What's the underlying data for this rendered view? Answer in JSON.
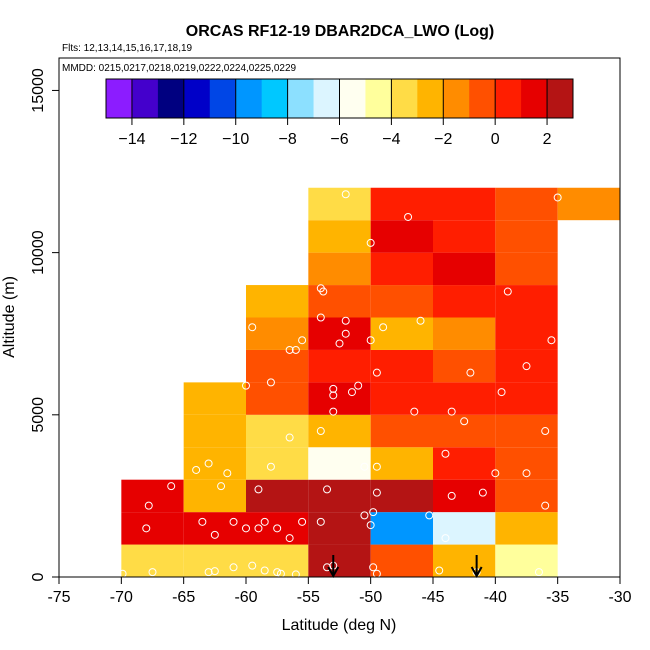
{
  "chart_data": {
    "type": "heatmap",
    "title": "ORCAS RF12-19 DBAR2DCA_LWO (Log)",
    "flights_note": "Flts: 12,13,14,15,16,17,18,19",
    "mmdd_note": "MMDD: 0215,0217,0218,0219,0222,0224,0225,0229",
    "xlabel": "Latitude (deg N)",
    "ylabel": "Altitude (m)",
    "xlim": [
      -75,
      -30
    ],
    "ylim": [
      0,
      16000
    ],
    "xticks": [
      -75,
      -70,
      -65,
      -60,
      -55,
      -50,
      -45,
      -40,
      -35,
      -30
    ],
    "yticks": [
      0,
      5000,
      10000,
      15000
    ],
    "colorbar": {
      "range": [
        -15,
        3
      ],
      "ticks": [
        -14,
        -12,
        -10,
        -8,
        -6,
        -4,
        -2,
        0,
        2
      ],
      "colors": [
        "#8c1cff",
        "#4400cc",
        "#000080",
        "#0000c8",
        "#0046e6",
        "#0096ff",
        "#00c8ff",
        "#8ce0ff",
        "#dcf5ff",
        "#fffff0",
        "#ffff9c",
        "#ffdc46",
        "#ffb400",
        "#ff8c00",
        "#ff5000",
        "#ff1e00",
        "#e60000",
        "#b41414"
      ]
    },
    "cell_width_deg": 5,
    "cell_height_m": 1000,
    "cells": [
      {
        "lat": -70,
        "alt": 0,
        "value": -3.5
      },
      {
        "lat": -65,
        "alt": 0,
        "value": -4.0
      },
      {
        "lat": -60,
        "alt": 0,
        "value": -3.5
      },
      {
        "lat": -55,
        "alt": 0,
        "value": 2.0
      },
      {
        "lat": -50,
        "alt": 0,
        "value": -1.0
      },
      {
        "lat": -45,
        "alt": 0,
        "value": -2.5
      },
      {
        "lat": -40,
        "alt": 0,
        "value": -5.0
      },
      {
        "lat": -70,
        "alt": 1000,
        "value": 1.0
      },
      {
        "lat": -65,
        "alt": 1000,
        "value": 1.0
      },
      {
        "lat": -60,
        "alt": 1000,
        "value": 1.0
      },
      {
        "lat": -55,
        "alt": 1000,
        "value": 2.0
      },
      {
        "lat": -50,
        "alt": 1000,
        "value": -9.5
      },
      {
        "lat": -45,
        "alt": 1000,
        "value": -7.0
      },
      {
        "lat": -40,
        "alt": 1000,
        "value": -3.0
      },
      {
        "lat": -70,
        "alt": 2000,
        "value": 1.0
      },
      {
        "lat": -65,
        "alt": 2000,
        "value": -3.0
      },
      {
        "lat": -60,
        "alt": 2000,
        "value": 2.0
      },
      {
        "lat": -55,
        "alt": 2000,
        "value": 2.8
      },
      {
        "lat": -50,
        "alt": 2000,
        "value": 2.8
      },
      {
        "lat": -45,
        "alt": 2000,
        "value": 1.5
      },
      {
        "lat": -40,
        "alt": 2000,
        "value": -1.0
      },
      {
        "lat": -65,
        "alt": 3000,
        "value": -2.5
      },
      {
        "lat": -60,
        "alt": 3000,
        "value": -3.5
      },
      {
        "lat": -55,
        "alt": 3000,
        "value": -5.5
      },
      {
        "lat": -50,
        "alt": 3000,
        "value": -3.0
      },
      {
        "lat": -45,
        "alt": 3000,
        "value": 0.0
      },
      {
        "lat": -40,
        "alt": 3000,
        "value": -0.5
      },
      {
        "lat": -65,
        "alt": 4000,
        "value": -2.5
      },
      {
        "lat": -60,
        "alt": 4000,
        "value": -3.5
      },
      {
        "lat": -55,
        "alt": 4000,
        "value": -3.0
      },
      {
        "lat": -50,
        "alt": 4000,
        "value": -0.5
      },
      {
        "lat": -45,
        "alt": 4000,
        "value": -0.5
      },
      {
        "lat": -40,
        "alt": 4000,
        "value": -0.5
      },
      {
        "lat": -65,
        "alt": 5000,
        "value": -2.5
      },
      {
        "lat": -60,
        "alt": 5000,
        "value": -1.0
      },
      {
        "lat": -55,
        "alt": 5000,
        "value": 1.0
      },
      {
        "lat": -50,
        "alt": 5000,
        "value": 0.5
      },
      {
        "lat": -45,
        "alt": 5000,
        "value": 0.0
      },
      {
        "lat": -40,
        "alt": 5000,
        "value": 0.0
      },
      {
        "lat": -60,
        "alt": 6000,
        "value": -1.0
      },
      {
        "lat": -55,
        "alt": 6000,
        "value": 0.0
      },
      {
        "lat": -50,
        "alt": 6000,
        "value": 0.5
      },
      {
        "lat": -45,
        "alt": 6000,
        "value": -0.5
      },
      {
        "lat": -40,
        "alt": 6000,
        "value": 0.0
      },
      {
        "lat": -60,
        "alt": 7000,
        "value": -1.5
      },
      {
        "lat": -55,
        "alt": 7000,
        "value": 1.0
      },
      {
        "lat": -50,
        "alt": 7000,
        "value": -2.5
      },
      {
        "lat": -45,
        "alt": 7000,
        "value": -1.5
      },
      {
        "lat": -40,
        "alt": 7000,
        "value": 0.5
      },
      {
        "lat": -60,
        "alt": 8000,
        "value": -2.5
      },
      {
        "lat": -55,
        "alt": 8000,
        "value": -1.0
      },
      {
        "lat": -50,
        "alt": 8000,
        "value": -1.0
      },
      {
        "lat": -45,
        "alt": 8000,
        "value": 0.5
      },
      {
        "lat": -40,
        "alt": 8000,
        "value": 0.0
      },
      {
        "lat": -55,
        "alt": 9000,
        "value": -1.5
      },
      {
        "lat": -50,
        "alt": 9000,
        "value": 0.5
      },
      {
        "lat": -45,
        "alt": 9000,
        "value": 1.0
      },
      {
        "lat": -40,
        "alt": 9000,
        "value": -0.5
      },
      {
        "lat": -55,
        "alt": 10000,
        "value": -2.5
      },
      {
        "lat": -50,
        "alt": 10000,
        "value": 1.0
      },
      {
        "lat": -45,
        "alt": 10000,
        "value": 0.5
      },
      {
        "lat": -40,
        "alt": 10000,
        "value": -0.5
      },
      {
        "lat": -55,
        "alt": 11000,
        "value": -3.5
      },
      {
        "lat": -50,
        "alt": 11000,
        "value": 0.5
      },
      {
        "lat": -45,
        "alt": 11000,
        "value": 0.5
      },
      {
        "lat": -40,
        "alt": 11000,
        "value": -1.0
      },
      {
        "lat": -35,
        "alt": 11000,
        "value": -1.5
      }
    ],
    "arrows": [
      {
        "lat": -53.0
      },
      {
        "lat": -41.5
      }
    ],
    "samples": [
      {
        "lat": -69.9,
        "alt": 100
      },
      {
        "lat": -67.5,
        "alt": 150
      },
      {
        "lat": -63.0,
        "alt": 150
      },
      {
        "lat": -62.5,
        "alt": 180
      },
      {
        "lat": -61.0,
        "alt": 300
      },
      {
        "lat": -59.5,
        "alt": 350
      },
      {
        "lat": -58.5,
        "alt": 200
      },
      {
        "lat": -57.5,
        "alt": 150
      },
      {
        "lat": -57.2,
        "alt": 100
      },
      {
        "lat": -56.0,
        "alt": 80
      },
      {
        "lat": -53.5,
        "alt": 300
      },
      {
        "lat": -53.0,
        "alt": 350
      },
      {
        "lat": -49.8,
        "alt": 300
      },
      {
        "lat": -49.5,
        "alt": 100
      },
      {
        "lat": -44.5,
        "alt": 200
      },
      {
        "lat": -41.5,
        "alt": 150
      },
      {
        "lat": -36.5,
        "alt": 150
      },
      {
        "lat": -68.0,
        "alt": 1500
      },
      {
        "lat": -63.5,
        "alt": 1700
      },
      {
        "lat": -62.5,
        "alt": 1300
      },
      {
        "lat": -61.0,
        "alt": 1700
      },
      {
        "lat": -60.0,
        "alt": 1500
      },
      {
        "lat": -59.0,
        "alt": 1500
      },
      {
        "lat": -58.5,
        "alt": 1700
      },
      {
        "lat": -57.5,
        "alt": 1500
      },
      {
        "lat": -56.5,
        "alt": 1200
      },
      {
        "lat": -55.5,
        "alt": 1700
      },
      {
        "lat": -54.0,
        "alt": 1700
      },
      {
        "lat": -50.5,
        "alt": 1900
      },
      {
        "lat": -50.0,
        "alt": 1600
      },
      {
        "lat": -49.8,
        "alt": 2000
      },
      {
        "lat": -45.3,
        "alt": 1900
      },
      {
        "lat": -44.0,
        "alt": 1200
      },
      {
        "lat": -67.8,
        "alt": 2200
      },
      {
        "lat": -66.0,
        "alt": 2800
      },
      {
        "lat": -62.0,
        "alt": 2800
      },
      {
        "lat": -59.0,
        "alt": 2700
      },
      {
        "lat": -53.5,
        "alt": 2700
      },
      {
        "lat": -49.5,
        "alt": 2600
      },
      {
        "lat": -43.5,
        "alt": 2500
      },
      {
        "lat": -41.0,
        "alt": 2600
      },
      {
        "lat": -36.0,
        "alt": 2200
      },
      {
        "lat": -64.0,
        "alt": 3300
      },
      {
        "lat": -63.0,
        "alt": 3500
      },
      {
        "lat": -61.5,
        "alt": 3200
      },
      {
        "lat": -58.0,
        "alt": 3400
      },
      {
        "lat": -50.5,
        "alt": 3400
      },
      {
        "lat": -49.5,
        "alt": 3400
      },
      {
        "lat": -44.0,
        "alt": 3800
      },
      {
        "lat": -40.0,
        "alt": 3200
      },
      {
        "lat": -37.5,
        "alt": 3200
      },
      {
        "lat": -56.5,
        "alt": 4300
      },
      {
        "lat": -54.0,
        "alt": 4500
      },
      {
        "lat": -53.0,
        "alt": 5100
      },
      {
        "lat": -46.5,
        "alt": 5100
      },
      {
        "lat": -43.5,
        "alt": 5100
      },
      {
        "lat": -42.5,
        "alt": 4800
      },
      {
        "lat": -36.0,
        "alt": 4500
      },
      {
        "lat": -60.0,
        "alt": 5900
      },
      {
        "lat": -58.0,
        "alt": 6000
      },
      {
        "lat": -53.0,
        "alt": 5800
      },
      {
        "lat": -53.0,
        "alt": 5600
      },
      {
        "lat": -51.5,
        "alt": 5700
      },
      {
        "lat": -51.0,
        "alt": 5900
      },
      {
        "lat": -49.5,
        "alt": 6300
      },
      {
        "lat": -42.0,
        "alt": 6300
      },
      {
        "lat": -39.5,
        "alt": 5700
      },
      {
        "lat": -37.5,
        "alt": 6500
      },
      {
        "lat": -56.5,
        "alt": 7000
      },
      {
        "lat": -56.0,
        "alt": 7000
      },
      {
        "lat": -55.5,
        "alt": 7300
      },
      {
        "lat": -52.5,
        "alt": 7200
      },
      {
        "lat": -52.0,
        "alt": 7500
      },
      {
        "lat": -50.0,
        "alt": 7300
      },
      {
        "lat": -49.0,
        "alt": 7700
      },
      {
        "lat": -46.0,
        "alt": 7900
      },
      {
        "lat": -35.5,
        "alt": 7300
      },
      {
        "lat": -59.5,
        "alt": 7700
      },
      {
        "lat": -54.0,
        "alt": 8000
      },
      {
        "lat": -52.0,
        "alt": 7900
      },
      {
        "lat": -54.0,
        "alt": 8900
      },
      {
        "lat": -53.8,
        "alt": 8800
      },
      {
        "lat": -39.0,
        "alt": 8800
      },
      {
        "lat": -50.0,
        "alt": 10300
      },
      {
        "lat": -47.0,
        "alt": 11100
      },
      {
        "lat": -52.0,
        "alt": 11800
      },
      {
        "lat": -35.0,
        "alt": 11700
      }
    ]
  }
}
